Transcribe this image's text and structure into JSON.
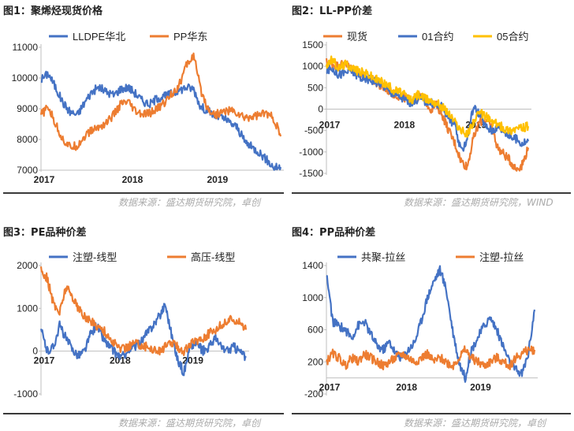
{
  "colors": {
    "blue": "#4472C4",
    "orange": "#ED7D31",
    "yellow": "#FFC000",
    "axis": "#bfbfbf",
    "source": "#aaaaaa"
  },
  "sources": {
    "top_left": "数据来源：盛达期货研究院，卓创",
    "top_right": "数据来源：盛达期货研究院，WIND",
    "bottom_left": "数据来源：盛达期货研究院，卓创",
    "bottom_right": "数据来源：盛达期货研究院，卓创"
  },
  "chart_data": [
    {
      "type": "line",
      "title": "图1：聚烯烃现货价格",
      "xlabel": "",
      "ylabel": "",
      "x_ticks": [
        "2017",
        "2018",
        "2019"
      ],
      "y_ticks": [
        7000,
        8000,
        9000,
        10000,
        11000
      ],
      "ylim": [
        7000,
        11000
      ],
      "legend": "top",
      "x": [
        "2017-01",
        "2017-02",
        "2017-03",
        "2017-04",
        "2017-05",
        "2017-06",
        "2017-07",
        "2017-08",
        "2017-09",
        "2017-10",
        "2017-11",
        "2017-12",
        "2018-01",
        "2018-02",
        "2018-03",
        "2018-04",
        "2018-05",
        "2018-06",
        "2018-07",
        "2018-08",
        "2018-09",
        "2018-10",
        "2018-11",
        "2018-12",
        "2019-01",
        "2019-02",
        "2019-03",
        "2019-04",
        "2019-05",
        "2019-06",
        "2019-07",
        "2019-08",
        "2019-09",
        "2019-10"
      ],
      "series": [
        {
          "name": "LLDPE华北",
          "color": "#4472C4",
          "values": [
            9950,
            10150,
            9700,
            9200,
            8900,
            8800,
            9200,
            9550,
            9700,
            9550,
            9450,
            9650,
            9700,
            9500,
            9250,
            9150,
            9350,
            9400,
            9500,
            9600,
            9700,
            9650,
            9050,
            8950,
            8750,
            8700,
            8550,
            8400,
            7950,
            7750,
            7600,
            7350,
            7100,
            7100
          ]
        },
        {
          "name": "PP华东",
          "color": "#ED7D31",
          "values": [
            8800,
            9050,
            8500,
            8000,
            7750,
            7800,
            8100,
            8300,
            8400,
            8550,
            8800,
            9150,
            9200,
            8900,
            8800,
            8850,
            9000,
            9200,
            9500,
            9750,
            10400,
            10750,
            9600,
            9000,
            8800,
            8900,
            8950,
            8850,
            8700,
            8750,
            8800,
            8850,
            8700,
            8100
          ]
        }
      ]
    },
    {
      "type": "line",
      "title": "图2：LL-PP价差",
      "xlabel": "",
      "ylabel": "",
      "x_ticks": [
        "2017",
        "2018",
        "2019"
      ],
      "y_ticks": [
        -1500,
        -1000,
        -500,
        0,
        500,
        1000,
        1500
      ],
      "ylim": [
        -1500,
        1500
      ],
      "legend": "top",
      "x": [
        "2017-01",
        "2017-02",
        "2017-03",
        "2017-04",
        "2017-05",
        "2017-06",
        "2017-07",
        "2017-08",
        "2017-09",
        "2017-10",
        "2017-11",
        "2017-12",
        "2018-01",
        "2018-02",
        "2018-03",
        "2018-04",
        "2018-05",
        "2018-06",
        "2018-07",
        "2018-08",
        "2018-09",
        "2018-10",
        "2018-11",
        "2018-12",
        "2019-01",
        "2019-02",
        "2019-03",
        "2019-04",
        "2019-05",
        "2019-06",
        "2019-07",
        "2019-08",
        "2019-09",
        "2019-10"
      ],
      "series": [
        {
          "name": "现货",
          "color": "#ED7D31",
          "values": [
            1100,
            1050,
            1000,
            1100,
            950,
            850,
            800,
            750,
            650,
            500,
            450,
            350,
            300,
            250,
            200,
            300,
            250,
            0,
            100,
            -150,
            -500,
            -800,
            -1200,
            -1350,
            -700,
            -300,
            -250,
            -400,
            -900,
            -1050,
            -1200,
            -1400,
            -1300,
            -900
          ]
        },
        {
          "name": "01合约",
          "color": "#4472C4",
          "values": [
            900,
            950,
            800,
            850,
            900,
            800,
            700,
            700,
            650,
            600,
            450,
            350,
            300,
            200,
            150,
            250,
            200,
            150,
            100,
            50,
            -200,
            -400,
            -1000,
            -700,
            50,
            -100,
            -400,
            -500,
            -400,
            -500,
            -650,
            -700,
            -800,
            -750
          ]
        },
        {
          "name": "05合约",
          "color": "#FFC000",
          "values": [
            1050,
            1150,
            950,
            1050,
            1000,
            900,
            850,
            800,
            700,
            650,
            550,
            450,
            400,
            300,
            200,
            350,
            250,
            200,
            150,
            50,
            -100,
            -300,
            -500,
            -600,
            -300,
            -100,
            -150,
            -300,
            -350,
            -450,
            -500,
            -450,
            -450,
            -400
          ]
        }
      ]
    },
    {
      "type": "line",
      "title": "图3：PE品种价差",
      "xlabel": "",
      "ylabel": "",
      "x_ticks": [
        "2017",
        "2018",
        "2019"
      ],
      "y_ticks": [
        -1000,
        0,
        1000,
        2000
      ],
      "ylim": [
        -1000,
        2000
      ],
      "legend": "top",
      "x": [
        "2017-01",
        "2017-02",
        "2017-03",
        "2017-04",
        "2017-05",
        "2017-06",
        "2017-07",
        "2017-08",
        "2017-09",
        "2017-10",
        "2017-11",
        "2017-12",
        "2018-01",
        "2018-02",
        "2018-03",
        "2018-04",
        "2018-05",
        "2018-06",
        "2018-07",
        "2018-08",
        "2018-09",
        "2018-10",
        "2018-11",
        "2018-12",
        "2019-01",
        "2019-02",
        "2019-03",
        "2019-04",
        "2019-05",
        "2019-06",
        "2019-07",
        "2019-08",
        "2019-09",
        "2019-10"
      ],
      "series": [
        {
          "name": "注塑-线型",
          "color": "#4472C4",
          "values": [
            500,
            0,
            100,
            600,
            300,
            50,
            -100,
            0,
            400,
            600,
            300,
            100,
            -50,
            -150,
            0,
            100,
            200,
            400,
            600,
            800,
            1100,
            400,
            -200,
            -500,
            100,
            200,
            0,
            100,
            300,
            100,
            0,
            100,
            0,
            -150
          ]
        },
        {
          "name": "高压-线型",
          "color": "#ED7D31",
          "values": [
            1900,
            1700,
            1100,
            900,
            1500,
            1300,
            1000,
            800,
            700,
            600,
            500,
            300,
            150,
            50,
            100,
            200,
            150,
            100,
            50,
            0,
            100,
            200,
            100,
            0,
            150,
            250,
            300,
            400,
            500,
            600,
            700,
            750,
            700,
            500
          ]
        }
      ]
    },
    {
      "type": "line",
      "title": "图4：PP品种价差",
      "xlabel": "",
      "ylabel": "",
      "x_ticks": [
        "2017",
        "2018",
        "2019"
      ],
      "y_ticks": [
        -200,
        200,
        600,
        1000,
        1400
      ],
      "ylim": [
        -200,
        1400
      ],
      "legend": "top",
      "x": [
        "2017-01",
        "2017-02",
        "2017-03",
        "2017-04",
        "2017-05",
        "2017-06",
        "2017-07",
        "2017-08",
        "2017-09",
        "2017-10",
        "2017-11",
        "2017-12",
        "2018-01",
        "2018-02",
        "2018-03",
        "2018-04",
        "2018-05",
        "2018-06",
        "2018-07",
        "2018-08",
        "2018-09",
        "2018-10",
        "2018-11",
        "2018-12",
        "2019-01",
        "2019-02",
        "2019-03",
        "2019-04",
        "2019-05",
        "2019-06",
        "2019-07",
        "2019-08",
        "2019-09",
        "2019-10"
      ],
      "series": [
        {
          "name": "共聚-拉丝",
          "color": "#4472C4",
          "values": [
            1300,
            700,
            650,
            600,
            500,
            650,
            700,
            550,
            400,
            350,
            450,
            300,
            250,
            350,
            450,
            700,
            1000,
            1200,
            1350,
            1100,
            600,
            200,
            0,
            350,
            500,
            650,
            750,
            600,
            400,
            200,
            100,
            50,
            300,
            850
          ]
        },
        {
          "name": "注塑-拉丝",
          "color": "#ED7D31",
          "values": [
            200,
            300,
            250,
            150,
            250,
            200,
            300,
            250,
            200,
            150,
            200,
            250,
            300,
            250,
            200,
            250,
            300,
            200,
            250,
            200,
            150,
            250,
            350,
            250,
            200,
            150,
            200,
            250,
            200,
            150,
            250,
            300,
            350,
            350
          ]
        }
      ]
    }
  ]
}
